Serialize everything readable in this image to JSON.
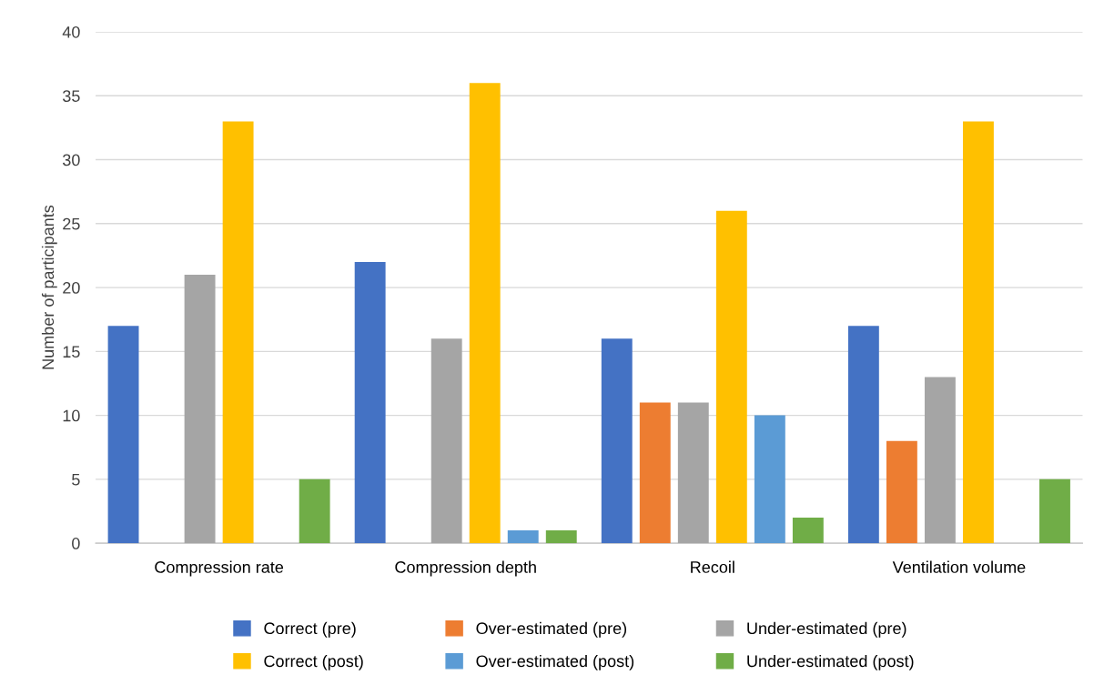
{
  "chart_data": {
    "type": "bar",
    "ylabel": "Number of participants",
    "categories": [
      "Compression rate",
      "Compression depth",
      "Recoil",
      "Ventilation volume"
    ],
    "series": [
      {
        "name": "Correct (pre)",
        "color": "#4472c4",
        "values": [
          17,
          22,
          16,
          17
        ]
      },
      {
        "name": "Over-estimated (pre)",
        "color": "#ed7d31",
        "values": [
          0,
          0,
          11,
          8
        ]
      },
      {
        "name": "Under-estimated (pre)",
        "color": "#a5a5a5",
        "values": [
          21,
          16,
          11,
          13
        ]
      },
      {
        "name": "Correct (post)",
        "color": "#ffc000",
        "values": [
          33,
          36,
          26,
          33
        ]
      },
      {
        "name": "Over-estimated (post)",
        "color": "#5b9bd5",
        "values": [
          0,
          1,
          10,
          0
        ]
      },
      {
        "name": "Under-estimated (post)",
        "color": "#70ad47",
        "values": [
          5,
          1,
          2,
          5
        ]
      }
    ],
    "ylim": [
      0,
      40
    ],
    "yticks": [
      0,
      5,
      10,
      15,
      20,
      25,
      30,
      35,
      40
    ],
    "grid": "y",
    "legend": "bottom"
  }
}
